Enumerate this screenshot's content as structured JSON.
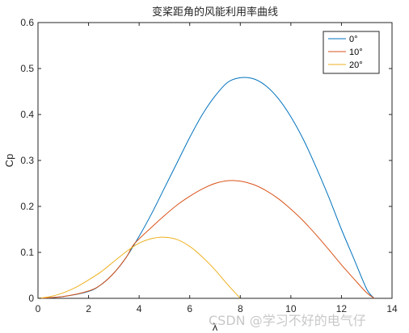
{
  "chart_data": {
    "type": "line",
    "title": "变桨距角的风能利用率曲线",
    "xlabel": "λ",
    "ylabel": "Cp",
    "xlim": [
      0,
      14
    ],
    "ylim": [
      0,
      0.6
    ],
    "xticks": [
      "0",
      "2",
      "4",
      "6",
      "8",
      "10",
      "12",
      "14"
    ],
    "yticks": [
      "0",
      "0.1",
      "0.2",
      "0.3",
      "0.4",
      "0.5",
      "0.6"
    ],
    "grid": false,
    "legend_position": "top-right",
    "series": [
      {
        "name": "0°",
        "color": "#0072BD",
        "x": [
          0,
          1,
          2,
          2.5,
          3,
          3.5,
          4,
          4.5,
          5,
          5.5,
          6,
          6.5,
          7,
          7.5,
          8,
          8.5,
          9,
          9.5,
          10,
          10.5,
          11,
          11.5,
          12,
          12.5,
          13,
          13.3
        ],
        "y": [
          0,
          0.004,
          0.015,
          0.03,
          0.055,
          0.09,
          0.135,
          0.185,
          0.24,
          0.295,
          0.35,
          0.4,
          0.44,
          0.47,
          0.48,
          0.478,
          0.463,
          0.435,
          0.395,
          0.345,
          0.285,
          0.22,
          0.15,
          0.085,
          0.02,
          0
        ]
      },
      {
        "name": "10°",
        "color": "#D95319",
        "x": [
          0,
          1,
          2,
          2.5,
          3,
          3.5,
          3.8,
          4.5,
          5,
          5.5,
          6,
          6.5,
          7,
          7.5,
          8,
          8.5,
          9,
          9.5,
          10,
          10.5,
          11,
          11.5,
          12,
          12.5,
          13,
          13.3
        ],
        "y": [
          0,
          0.004,
          0.016,
          0.03,
          0.055,
          0.09,
          0.118,
          0.155,
          0.18,
          0.203,
          0.222,
          0.238,
          0.25,
          0.256,
          0.255,
          0.248,
          0.235,
          0.217,
          0.194,
          0.168,
          0.138,
          0.106,
          0.073,
          0.042,
          0.012,
          0
        ]
      },
      {
        "name": "20°",
        "color": "#EDB120",
        "x": [
          0,
          0.5,
          1,
          1.5,
          2,
          2.5,
          3,
          3.5,
          4,
          4.5,
          5,
          5.5,
          6,
          6.5,
          7,
          7.5,
          8
        ],
        "y": [
          0,
          0.004,
          0.012,
          0.024,
          0.04,
          0.058,
          0.08,
          0.102,
          0.12,
          0.13,
          0.133,
          0.128,
          0.113,
          0.09,
          0.062,
          0.03,
          0
        ]
      }
    ]
  },
  "watermark": "CSDN @学习不好的电气仔"
}
